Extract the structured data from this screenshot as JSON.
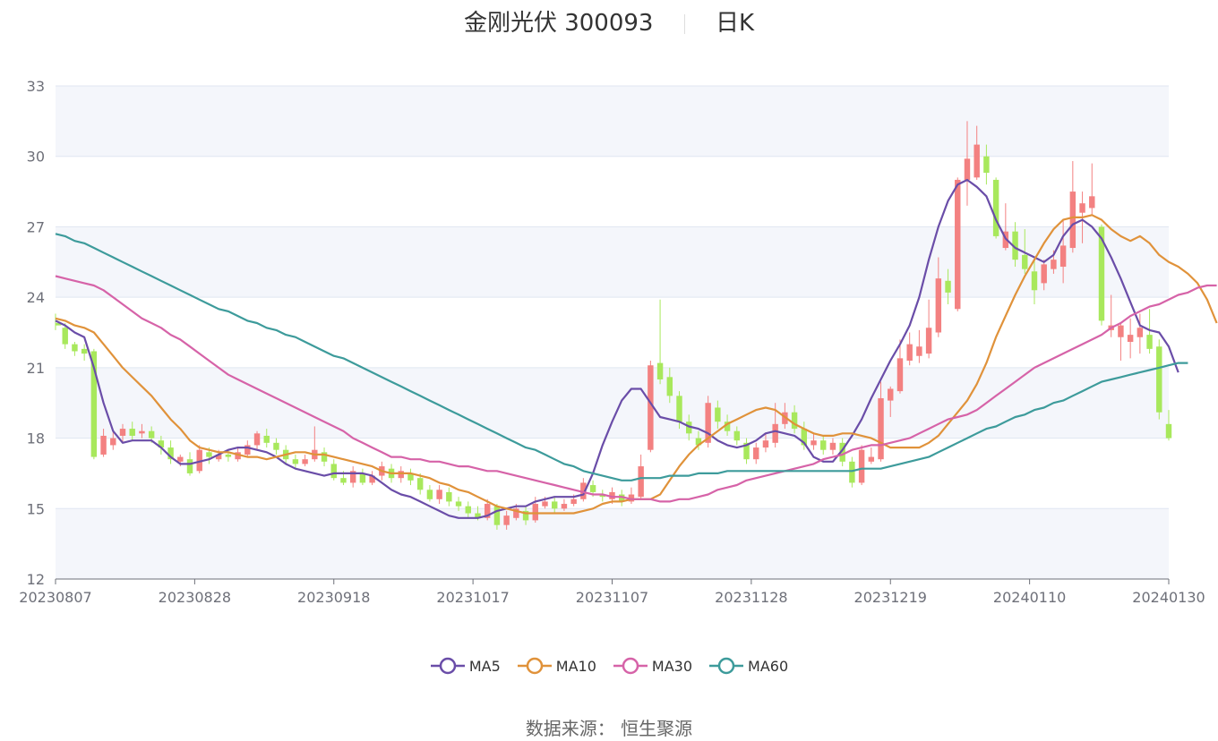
{
  "title": {
    "name": "金刚光伏 300093",
    "period": "日K"
  },
  "source": "数据来源： 恒生聚源",
  "colors": {
    "up": "#f38181",
    "down": "#a8e85c",
    "grid": "#e0e6f1",
    "band": "#f4f6fb",
    "MA5": "#6a4da8",
    "MA10": "#e0923a",
    "MA30": "#d663a8",
    "MA60": "#3d9b9b",
    "axis": "#6e7079"
  },
  "chart_data": {
    "type": "candlestick",
    "ylim": [
      12,
      33
    ],
    "yticks": [
      12,
      15,
      18,
      21,
      24,
      27,
      30,
      33
    ],
    "xticks": [
      "20230807",
      "20230828",
      "20230918",
      "20231017",
      "20231107",
      "20231128",
      "20231219",
      "20240110",
      "20240130"
    ],
    "legend": [
      "MA5",
      "MA10",
      "MA30",
      "MA60"
    ],
    "legend_position": "bottom",
    "candles": [
      [
        22.9,
        22.8,
        23.3,
        22.6
      ],
      [
        22.7,
        22.0,
        22.9,
        21.8
      ],
      [
        22.0,
        21.7,
        22.1,
        21.5
      ],
      [
        21.8,
        21.6,
        22.0,
        21.3
      ],
      [
        21.7,
        17.2,
        21.8,
        17.1
      ],
      [
        17.3,
        18.1,
        18.4,
        17.2
      ],
      [
        17.7,
        18.0,
        18.3,
        17.5
      ],
      [
        18.1,
        18.4,
        18.6,
        17.8
      ],
      [
        18.4,
        18.1,
        18.7,
        17.9
      ],
      [
        18.2,
        18.3,
        18.6,
        18.0
      ],
      [
        18.3,
        18.0,
        18.5,
        17.8
      ],
      [
        17.9,
        17.6,
        18.1,
        17.3
      ],
      [
        17.6,
        17.1,
        17.9,
        16.9
      ],
      [
        17.0,
        17.2,
        17.3,
        16.8
      ],
      [
        17.1,
        16.5,
        17.4,
        16.4
      ],
      [
        16.6,
        17.5,
        17.7,
        16.5
      ],
      [
        17.4,
        17.2,
        17.6,
        16.9
      ],
      [
        17.1,
        17.3,
        17.5,
        17.0
      ],
      [
        17.3,
        17.2,
        17.5,
        17.0
      ],
      [
        17.1,
        17.4,
        17.6,
        17.0
      ],
      [
        17.3,
        17.7,
        17.9,
        17.2
      ],
      [
        17.7,
        18.2,
        18.3,
        17.5
      ],
      [
        18.1,
        17.8,
        18.4,
        17.6
      ],
      [
        17.8,
        17.5,
        18.0,
        17.3
      ],
      [
        17.5,
        17.1,
        17.7,
        16.9
      ],
      [
        17.1,
        16.9,
        17.3,
        16.7
      ],
      [
        16.9,
        17.1,
        17.3,
        16.8
      ],
      [
        17.1,
        17.5,
        18.5,
        17.0
      ],
      [
        17.4,
        17.0,
        17.6,
        16.8
      ],
      [
        16.9,
        16.3,
        17.1,
        16.2
      ],
      [
        16.3,
        16.1,
        16.6,
        16.0
      ],
      [
        16.1,
        16.6,
        16.8,
        15.9
      ],
      [
        16.5,
        16.1,
        16.7,
        16.0
      ],
      [
        16.1,
        16.4,
        16.6,
        16.0
      ],
      [
        16.4,
        16.8,
        17.0,
        16.2
      ],
      [
        16.7,
        16.3,
        16.9,
        16.1
      ],
      [
        16.3,
        16.6,
        16.8,
        16.1
      ],
      [
        16.5,
        16.2,
        16.7,
        16.0
      ],
      [
        16.3,
        15.8,
        16.5,
        15.6
      ],
      [
        15.8,
        15.4,
        16.0,
        15.3
      ],
      [
        15.4,
        15.8,
        16.0,
        15.2
      ],
      [
        15.7,
        15.3,
        15.9,
        15.1
      ],
      [
        15.3,
        15.1,
        15.5,
        14.9
      ],
      [
        15.1,
        14.8,
        15.3,
        14.6
      ],
      [
        14.8,
        14.6,
        15.1,
        14.5
      ],
      [
        14.6,
        15.2,
        15.4,
        14.5
      ],
      [
        15.1,
        14.3,
        15.2,
        14.1
      ],
      [
        14.3,
        14.7,
        14.9,
        14.1
      ],
      [
        14.6,
        15.0,
        15.2,
        14.5
      ],
      [
        14.9,
        14.5,
        15.1,
        14.3
      ],
      [
        14.5,
        15.2,
        15.5,
        14.4
      ],
      [
        15.1,
        15.3,
        15.5,
        15.0
      ],
      [
        15.3,
        15.0,
        15.5,
        14.8
      ],
      [
        15.0,
        15.2,
        15.4,
        14.9
      ],
      [
        15.2,
        15.4,
        15.6,
        15.1
      ],
      [
        15.4,
        16.1,
        16.3,
        15.3
      ],
      [
        16.0,
        15.7,
        16.2,
        15.5
      ],
      [
        15.6,
        15.5,
        15.8,
        15.3
      ],
      [
        15.4,
        15.7,
        15.9,
        15.2
      ],
      [
        15.6,
        15.3,
        15.8,
        15.1
      ],
      [
        15.3,
        15.6,
        15.9,
        15.2
      ],
      [
        15.5,
        16.8,
        17.3,
        15.4
      ],
      [
        17.5,
        21.1,
        21.3,
        17.4
      ],
      [
        21.2,
        20.5,
        23.9,
        20.3
      ],
      [
        20.6,
        19.8,
        21.0,
        19.5
      ],
      [
        19.8,
        18.7,
        20.0,
        18.4
      ],
      [
        18.7,
        18.2,
        19.0,
        17.9
      ],
      [
        18.0,
        17.7,
        18.3,
        17.5
      ],
      [
        17.8,
        19.5,
        19.8,
        17.6
      ],
      [
        19.3,
        18.7,
        19.6,
        18.4
      ],
      [
        18.7,
        18.3,
        19.0,
        18.1
      ],
      [
        18.3,
        17.9,
        18.5,
        17.7
      ],
      [
        17.8,
        17.1,
        18.0,
        16.9
      ],
      [
        17.1,
        17.6,
        17.8,
        16.9
      ],
      [
        17.6,
        17.9,
        18.2,
        17.4
      ],
      [
        17.8,
        18.6,
        19.5,
        17.6
      ],
      [
        18.6,
        19.1,
        19.5,
        18.4
      ],
      [
        19.1,
        18.4,
        19.4,
        18.2
      ],
      [
        18.4,
        17.7,
        18.7,
        17.5
      ],
      [
        17.7,
        17.9,
        18.2,
        17.5
      ],
      [
        17.9,
        17.5,
        18.1,
        17.3
      ],
      [
        17.5,
        17.8,
        18.0,
        17.3
      ],
      [
        17.8,
        17.0,
        18.0,
        16.8
      ],
      [
        17.0,
        16.1,
        17.2,
        15.9
      ],
      [
        16.1,
        17.5,
        17.7,
        16.0
      ],
      [
        17.0,
        17.2,
        17.6,
        16.9
      ],
      [
        17.1,
        19.7,
        20.4,
        17.0
      ],
      [
        19.6,
        20.1,
        20.2,
        18.9
      ],
      [
        20.0,
        21.4,
        22.2,
        19.9
      ],
      [
        21.3,
        22.0,
        22.5,
        21.1
      ],
      [
        21.5,
        21.9,
        22.6,
        21.2
      ],
      [
        21.6,
        22.7,
        23.9,
        21.4
      ],
      [
        22.5,
        24.8,
        25.7,
        22.3
      ],
      [
        24.7,
        24.2,
        25.2,
        23.7
      ],
      [
        23.5,
        29.0,
        29.1,
        23.4
      ],
      [
        29.0,
        29.9,
        31.5,
        27.9
      ],
      [
        29.1,
        30.5,
        31.3,
        29.0
      ],
      [
        30.0,
        29.3,
        30.5,
        28.8
      ],
      [
        29.0,
        26.6,
        29.1,
        26.5
      ],
      [
        26.1,
        26.8,
        28.0,
        26.0
      ],
      [
        26.8,
        25.6,
        27.2,
        25.3
      ],
      [
        25.8,
        25.2,
        26.9,
        25.0
      ],
      [
        25.1,
        24.3,
        25.6,
        23.7
      ],
      [
        24.6,
        25.4,
        25.6,
        24.3
      ],
      [
        25.2,
        25.6,
        26.0,
        25.0
      ],
      [
        25.3,
        26.2,
        27.3,
        24.6
      ],
      [
        26.1,
        28.5,
        29.8,
        25.9
      ],
      [
        27.6,
        28.0,
        28.5,
        26.3
      ],
      [
        27.8,
        28.3,
        29.7,
        27.5
      ],
      [
        27.0,
        23.0,
        27.1,
        22.8
      ],
      [
        22.6,
        22.8,
        24.1,
        22.3
      ],
      [
        22.3,
        22.8,
        22.9,
        21.3
      ],
      [
        22.1,
        22.4,
        23.1,
        21.4
      ],
      [
        22.3,
        22.7,
        23.3,
        21.6
      ],
      [
        22.4,
        21.8,
        23.5,
        21.6
      ],
      [
        21.9,
        19.1,
        22.2,
        18.8
      ],
      [
        18.6,
        18.0,
        19.2,
        17.9
      ]
    ],
    "series": [
      {
        "name": "MA5",
        "values": [
          23.0,
          22.8,
          22.5,
          22.3,
          21.0,
          19.5,
          18.3,
          17.8,
          17.9,
          17.9,
          17.9,
          17.6,
          17.2,
          16.9,
          16.9,
          17.0,
          17.1,
          17.3,
          17.5,
          17.6,
          17.6,
          17.5,
          17.4,
          17.2,
          16.9,
          16.7,
          16.6,
          16.5,
          16.4,
          16.5,
          16.5,
          16.5,
          16.5,
          16.4,
          16.1,
          15.8,
          15.6,
          15.5,
          15.3,
          15.1,
          14.9,
          14.7,
          14.6,
          14.6,
          14.6,
          14.7,
          14.9,
          15.0,
          15.1,
          15.1,
          15.3,
          15.4,
          15.5,
          15.5,
          15.5,
          15.6,
          16.5,
          17.7,
          18.7,
          19.6,
          20.1,
          20.1,
          19.5,
          18.9,
          18.8,
          18.7,
          18.5,
          18.4,
          18.2,
          17.9,
          17.7,
          17.6,
          17.7,
          17.9,
          18.2,
          18.3,
          18.2,
          18.1,
          17.8,
          17.2,
          17.0,
          17.0,
          17.5,
          18.1,
          18.8,
          19.7,
          20.5,
          21.3,
          22.0,
          22.8,
          24.0,
          25.6,
          27.0,
          28.1,
          28.8,
          29.0,
          28.7,
          28.3,
          27.3,
          26.5,
          26.1,
          25.9,
          25.7,
          25.5,
          25.8,
          26.6,
          27.1,
          27.3,
          27.0,
          26.5,
          25.7,
          24.8,
          23.8,
          22.8,
          22.6,
          22.5,
          21.9,
          20.8
        ]
      },
      {
        "name": "MA10",
        "values": [
          23.1,
          23.0,
          22.8,
          22.7,
          22.5,
          22.0,
          21.5,
          21.0,
          20.6,
          20.2,
          19.8,
          19.3,
          18.8,
          18.4,
          17.9,
          17.6,
          17.5,
          17.4,
          17.4,
          17.3,
          17.2,
          17.2,
          17.1,
          17.2,
          17.3,
          17.4,
          17.4,
          17.3,
          17.3,
          17.2,
          17.1,
          17.0,
          16.9,
          16.8,
          16.6,
          16.5,
          16.5,
          16.5,
          16.4,
          16.3,
          16.1,
          16.0,
          15.8,
          15.7,
          15.5,
          15.3,
          15.1,
          15.0,
          14.9,
          14.8,
          14.8,
          14.8,
          14.8,
          14.8,
          14.8,
          14.9,
          15.0,
          15.2,
          15.3,
          15.3,
          15.4,
          15.4,
          15.4,
          15.6,
          16.2,
          16.8,
          17.3,
          17.7,
          18.0,
          18.3,
          18.6,
          18.8,
          19.0,
          19.2,
          19.3,
          19.2,
          18.9,
          18.6,
          18.4,
          18.2,
          18.1,
          18.1,
          18.2,
          18.2,
          18.1,
          18.0,
          17.8,
          17.6,
          17.6,
          17.6,
          17.6,
          17.8,
          18.1,
          18.6,
          19.1,
          19.6,
          20.3,
          21.2,
          22.3,
          23.2,
          24.1,
          24.9,
          25.6,
          26.3,
          26.9,
          27.3,
          27.4,
          27.4,
          27.5,
          27.3,
          26.9,
          26.6,
          26.4,
          26.6,
          26.3,
          25.8,
          25.5,
          25.3,
          25.0,
          24.6,
          23.9,
          22.9
        ]
      },
      {
        "name": "MA30",
        "values": [
          24.9,
          24.8,
          24.7,
          24.6,
          24.5,
          24.3,
          24.0,
          23.7,
          23.4,
          23.1,
          22.9,
          22.7,
          22.4,
          22.2,
          21.9,
          21.6,
          21.3,
          21.0,
          20.7,
          20.5,
          20.3,
          20.1,
          19.9,
          19.7,
          19.5,
          19.3,
          19.1,
          18.9,
          18.7,
          18.5,
          18.3,
          18.0,
          17.8,
          17.6,
          17.4,
          17.2,
          17.2,
          17.1,
          17.1,
          17.0,
          17.0,
          16.9,
          16.8,
          16.8,
          16.7,
          16.6,
          16.6,
          16.5,
          16.4,
          16.3,
          16.2,
          16.1,
          16.0,
          15.9,
          15.8,
          15.7,
          15.6,
          15.6,
          15.5,
          15.5,
          15.4,
          15.4,
          15.4,
          15.3,
          15.3,
          15.4,
          15.4,
          15.5,
          15.6,
          15.8,
          15.9,
          16.0,
          16.2,
          16.3,
          16.4,
          16.5,
          16.6,
          16.7,
          16.8,
          16.9,
          17.1,
          17.2,
          17.3,
          17.5,
          17.6,
          17.7,
          17.7,
          17.8,
          17.9,
          18.0,
          18.2,
          18.4,
          18.6,
          18.8,
          18.9,
          19.0,
          19.2,
          19.5,
          19.8,
          20.1,
          20.4,
          20.7,
          21.0,
          21.2,
          21.4,
          21.6,
          21.8,
          22.0,
          22.2,
          22.4,
          22.7,
          22.9,
          23.2,
          23.4,
          23.6,
          23.7,
          23.9,
          24.1,
          24.2,
          24.4,
          24.5,
          24.5
        ]
      },
      {
        "name": "MA60",
        "values": [
          26.7,
          26.6,
          26.4,
          26.3,
          26.1,
          25.9,
          25.7,
          25.5,
          25.3,
          25.1,
          24.9,
          24.7,
          24.5,
          24.3,
          24.1,
          23.9,
          23.7,
          23.5,
          23.4,
          23.2,
          23.0,
          22.9,
          22.7,
          22.6,
          22.4,
          22.3,
          22.1,
          21.9,
          21.7,
          21.5,
          21.4,
          21.2,
          21.0,
          20.8,
          20.6,
          20.4,
          20.2,
          20.0,
          19.8,
          19.6,
          19.4,
          19.2,
          19.0,
          18.8,
          18.6,
          18.4,
          18.2,
          18.0,
          17.8,
          17.6,
          17.5,
          17.3,
          17.1,
          16.9,
          16.8,
          16.6,
          16.5,
          16.4,
          16.3,
          16.2,
          16.2,
          16.3,
          16.3,
          16.3,
          16.4,
          16.4,
          16.4,
          16.5,
          16.5,
          16.5,
          16.6,
          16.6,
          16.6,
          16.6,
          16.6,
          16.6,
          16.6,
          16.6,
          16.6,
          16.6,
          16.6,
          16.6,
          16.6,
          16.6,
          16.7,
          16.7,
          16.7,
          16.8,
          16.9,
          17.0,
          17.1,
          17.2,
          17.4,
          17.6,
          17.8,
          18.0,
          18.2,
          18.4,
          18.5,
          18.7,
          18.9,
          19.0,
          19.2,
          19.3,
          19.5,
          19.6,
          19.8,
          20.0,
          20.2,
          20.4,
          20.5,
          20.6,
          20.7,
          20.8,
          20.9,
          21.0,
          21.1,
          21.2,
          21.2
        ]
      }
    ]
  }
}
